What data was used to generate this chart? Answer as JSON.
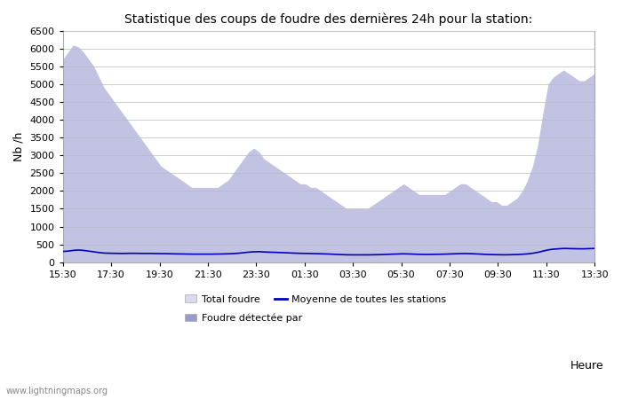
{
  "title": "Statistique des coups de foudre des dernières 24h pour la station:",
  "xlabel": "Heure",
  "ylabel": "Nb /h",
  "watermark": "www.lightningmaps.org",
  "legend": {
    "total_foudre": "Total foudre",
    "foudre_detectee": "Foudre détectée par",
    "moyenne": "Moyenne de toutes les stations"
  },
  "x_ticks": [
    "15:30",
    "17:30",
    "19:30",
    "21:30",
    "23:30",
    "01:30",
    "03:30",
    "05:30",
    "07:30",
    "09:30",
    "11:30",
    "13:30"
  ],
  "ylim": [
    0,
    6500
  ],
  "y_ticks": [
    0,
    500,
    1000,
    1500,
    2000,
    2500,
    3000,
    3500,
    4000,
    4500,
    5000,
    5500,
    6000,
    6500
  ],
  "fill_color_total": "#d8d8f0",
  "fill_color_detectee": "#9999cc",
  "line_color": "#0000bb",
  "bg_color": "#ffffff",
  "grid_color": "#cccccc",
  "total_foudre_data": [
    5700,
    5900,
    6100,
    6050,
    5900,
    5700,
    5500,
    5200,
    4900,
    4700,
    4500,
    4300,
    4100,
    3900,
    3700,
    3500,
    3300,
    3100,
    2900,
    2700,
    2600,
    2500,
    2400,
    2300,
    2200,
    2100,
    2100,
    2100,
    2100,
    2100,
    2100,
    2200,
    2300,
    2500,
    2700,
    2900,
    3100,
    3200,
    3100,
    2900,
    2800,
    2700,
    2600,
    2500,
    2400,
    2300,
    2200,
    2200,
    2100,
    2100,
    2000,
    1900,
    1800,
    1700,
    1600,
    1500,
    1500,
    1500,
    1500,
    1500,
    1600,
    1700,
    1800,
    1900,
    2000,
    2100,
    2200,
    2100,
    2000,
    1900,
    1900,
    1900,
    1900,
    1900,
    1900,
    2000,
    2100,
    2200,
    2200,
    2100,
    2000,
    1900,
    1800,
    1700,
    1700,
    1600,
    1600,
    1700,
    1800,
    2000,
    2300,
    2700,
    3300,
    4200,
    5000,
    5200,
    5300,
    5400,
    5300,
    5200,
    5100,
    5100,
    5200,
    5300
  ],
  "moyenne_data": [
    300,
    310,
    330,
    340,
    330,
    310,
    290,
    270,
    255,
    250,
    248,
    245,
    245,
    248,
    248,
    245,
    245,
    245,
    242,
    240,
    238,
    235,
    232,
    230,
    228,
    225,
    225,
    225,
    225,
    225,
    228,
    230,
    235,
    240,
    250,
    265,
    280,
    290,
    295,
    285,
    280,
    275,
    270,
    265,
    258,
    252,
    248,
    245,
    242,
    238,
    235,
    230,
    225,
    218,
    212,
    207,
    205,
    205,
    205,
    205,
    207,
    210,
    215,
    220,
    225,
    230,
    235,
    230,
    225,
    220,
    218,
    218,
    220,
    222,
    225,
    230,
    235,
    240,
    242,
    238,
    232,
    225,
    218,
    213,
    210,
    207,
    207,
    210,
    215,
    222,
    232,
    250,
    275,
    310,
    345,
    365,
    375,
    385,
    382,
    378,
    375,
    375,
    380,
    385
  ]
}
